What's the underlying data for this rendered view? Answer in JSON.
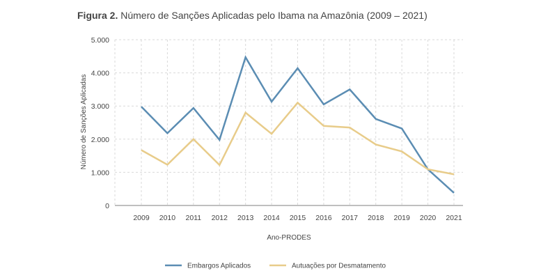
{
  "figure": {
    "label": "Figura 2.",
    "title": "Número de Sanções Aplicadas pelo Ibama na Amazônia (2009 – 2021)"
  },
  "chart_data": {
    "type": "line",
    "title": "Número de Sanções Aplicadas pelo Ibama na Amazônia (2009 – 2021)",
    "xlabel": "Ano-PRODES",
    "ylabel": "Número de Sanções Aplicadas",
    "categories": [
      "2009",
      "2010",
      "2011",
      "2012",
      "2013",
      "2014",
      "2015",
      "2016",
      "2017",
      "2018",
      "2019",
      "2020",
      "2021"
    ],
    "y_ticks": [
      0,
      1000,
      2000,
      3000,
      4000,
      5000
    ],
    "y_tick_labels": [
      "0",
      "1.000",
      "2.000",
      "3.000",
      "4.000",
      "5.000"
    ],
    "ylim": [
      0,
      5000
    ],
    "grid": true,
    "legend_position": "bottom",
    "series": [
      {
        "name": "Embargos Aplicados",
        "color": "#5b8db3",
        "values": [
          2980,
          2180,
          2940,
          1980,
          4470,
          3130,
          4140,
          3050,
          3500,
          2610,
          2320,
          1090,
          380
        ]
      },
      {
        "name": "Autuações por Desmatamento",
        "color": "#e8cc8a",
        "values": [
          1670,
          1230,
          2000,
          1220,
          2800,
          2160,
          3100,
          2400,
          2350,
          1840,
          1630,
          1090,
          940
        ]
      }
    ]
  }
}
